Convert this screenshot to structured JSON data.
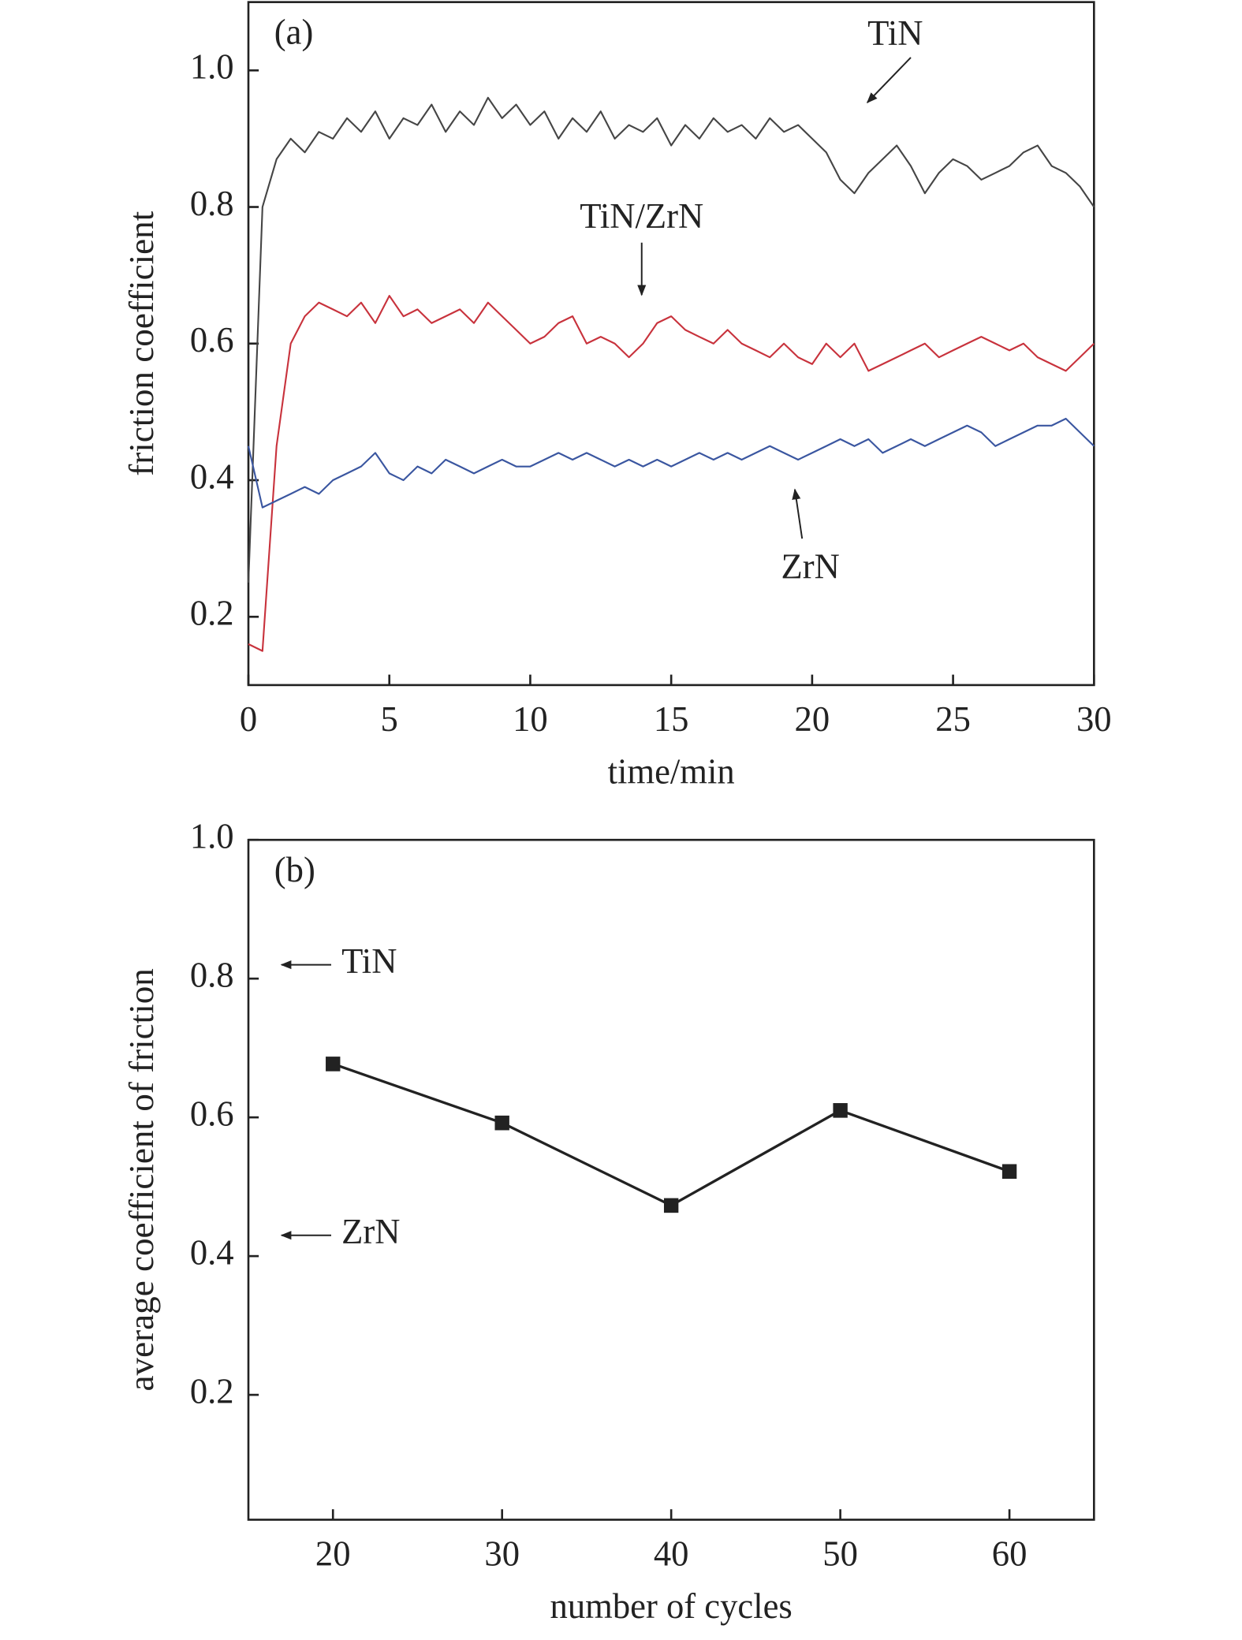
{
  "chart_data": [
    {
      "type": "line",
      "panel_label": "(a)",
      "xlabel": "time/min",
      "ylabel": "friction coefficient",
      "xlim": [
        0,
        30
      ],
      "xticks": [
        0,
        5,
        10,
        15,
        20,
        25,
        30
      ],
      "ylim": [
        0.1,
        1.1
      ],
      "yticks": [
        0.2,
        0.4,
        0.6,
        0.8,
        {
          "value": 1,
          "label": "1.0"
        }
      ],
      "x": [
        0,
        0.5,
        1,
        1.5,
        2,
        2.5,
        3,
        3.5,
        4,
        4.5,
        5,
        5.5,
        6,
        6.5,
        7,
        7.5,
        8,
        8.5,
        9,
        9.5,
        10,
        10.5,
        11,
        11.5,
        12,
        12.5,
        13,
        13.5,
        14,
        14.5,
        15,
        15.5,
        16,
        16.5,
        17,
        17.5,
        18,
        18.5,
        19,
        19.5,
        20,
        20.5,
        21,
        21.5,
        22,
        22.5,
        23,
        23.5,
        24,
        24.5,
        25,
        25.5,
        26,
        26.5,
        27,
        27.5,
        28,
        28.5,
        29,
        29.5,
        30
      ],
      "series": [
        {
          "name": "TiN",
          "color": "#454545",
          "values": [
            0.25,
            0.8,
            0.87,
            0.9,
            0.88,
            0.91,
            0.9,
            0.93,
            0.91,
            0.94,
            0.9,
            0.93,
            0.92,
            0.95,
            0.91,
            0.94,
            0.92,
            0.96,
            0.93,
            0.95,
            0.92,
            0.94,
            0.9,
            0.93,
            0.91,
            0.94,
            0.9,
            0.92,
            0.91,
            0.93,
            0.89,
            0.92,
            0.9,
            0.93,
            0.91,
            0.92,
            0.9,
            0.93,
            0.91,
            0.92,
            0.9,
            0.88,
            0.84,
            0.82,
            0.85,
            0.87,
            0.89,
            0.86,
            0.82,
            0.85,
            0.87,
            0.86,
            0.84,
            0.85,
            0.86,
            0.88,
            0.89,
            0.86,
            0.85,
            0.83,
            0.8
          ]
        },
        {
          "name": "TiN/ZrN",
          "color": "#c8323c",
          "values": [
            0.16,
            0.15,
            0.45,
            0.6,
            0.64,
            0.66,
            0.65,
            0.64,
            0.66,
            0.63,
            0.67,
            0.64,
            0.65,
            0.63,
            0.64,
            0.65,
            0.63,
            0.66,
            0.64,
            0.62,
            0.6,
            0.61,
            0.63,
            0.64,
            0.6,
            0.61,
            0.6,
            0.58,
            0.6,
            0.63,
            0.64,
            0.62,
            0.61,
            0.6,
            0.62,
            0.6,
            0.59,
            0.58,
            0.6,
            0.58,
            0.57,
            0.6,
            0.58,
            0.6,
            0.56,
            0.57,
            0.58,
            0.59,
            0.6,
            0.58,
            0.59,
            0.6,
            0.61,
            0.6,
            0.59,
            0.6,
            0.58,
            0.57,
            0.56,
            0.58,
            0.6
          ]
        },
        {
          "name": "ZrN",
          "color": "#3a56a0",
          "values": [
            0.45,
            0.36,
            0.37,
            0.38,
            0.39,
            0.38,
            0.4,
            0.41,
            0.42,
            0.44,
            0.41,
            0.4,
            0.42,
            0.41,
            0.43,
            0.42,
            0.41,
            0.42,
            0.43,
            0.42,
            0.42,
            0.43,
            0.44,
            0.43,
            0.44,
            0.43,
            0.42,
            0.43,
            0.42,
            0.43,
            0.42,
            0.43,
            0.44,
            0.43,
            0.44,
            0.43,
            0.44,
            0.45,
            0.44,
            0.43,
            0.44,
            0.45,
            0.46,
            0.45,
            0.46,
            0.44,
            0.45,
            0.46,
            0.45,
            0.46,
            0.47,
            0.48,
            0.47,
            0.45,
            0.46,
            0.47,
            0.48,
            0.48,
            0.49,
            0.47,
            0.45
          ]
        }
      ]
    },
    {
      "type": "line",
      "panel_label": "(b)",
      "xlabel": "number of cycles",
      "ylabel": "average coefficient of friction",
      "xlim": [
        15,
        65
      ],
      "xticks": [
        20,
        30,
        40,
        50,
        60
      ],
      "ylim": [
        0.02,
        1.0
      ],
      "yticks": [
        0.2,
        0.4,
        0.6,
        0.8,
        {
          "value": 1,
          "label": "1.0"
        }
      ],
      "x": [
        20,
        30,
        40,
        50,
        60
      ],
      "series": [
        {
          "color": "#222222",
          "values": [
            0.677,
            0.592,
            0.473,
            0.61,
            0.522
          ]
        }
      ],
      "annotations": [
        {
          "text": "TiN",
          "y": 0.82
        },
        {
          "text": "ZrN",
          "y": 0.43
        }
      ]
    }
  ]
}
